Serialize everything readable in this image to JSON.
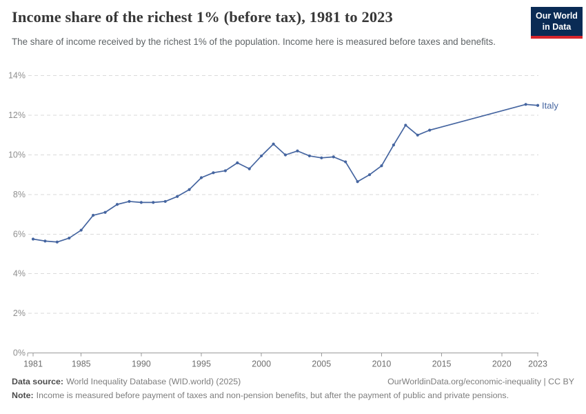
{
  "header": {
    "title": "Income share of the richest 1% (before tax), 1981 to 2023",
    "subtitle": "The share of income received by the richest 1% of the population. Income here is measured before taxes and benefits.",
    "logo": {
      "line1": "Our World",
      "line2": "in Data",
      "bg_color": "#0a2b55",
      "stripe_color": "#d7252c"
    }
  },
  "chart_data": {
    "type": "line",
    "title": "Income share of the richest 1% (before tax), 1981 to 2023",
    "xlabel": "",
    "ylabel": "",
    "xlim": [
      1981,
      2023
    ],
    "ylim": [
      0,
      14
    ],
    "grid": "horizontal-dashed",
    "legend_position": "end-of-line",
    "x_ticks": [
      1981,
      1985,
      1990,
      1995,
      2000,
      2005,
      2010,
      2015,
      2020,
      2023
    ],
    "y_ticks": [
      0,
      2,
      4,
      6,
      8,
      10,
      12,
      14
    ],
    "y_tick_suffix": "%",
    "series": [
      {
        "name": "Italy",
        "color": "#4565a0",
        "points": [
          [
            1981,
            5.75
          ],
          [
            1982,
            5.65
          ],
          [
            1983,
            5.6
          ],
          [
            1984,
            5.8
          ],
          [
            1985,
            6.2
          ],
          [
            1986,
            6.95
          ],
          [
            1987,
            7.1
          ],
          [
            1988,
            7.5
          ],
          [
            1989,
            7.65
          ],
          [
            1990,
            7.6
          ],
          [
            1991,
            7.6
          ],
          [
            1992,
            7.65
          ],
          [
            1993,
            7.9
          ],
          [
            1994,
            8.25
          ],
          [
            1995,
            8.85
          ],
          [
            1996,
            9.1
          ],
          [
            1997,
            9.2
          ],
          [
            1998,
            9.6
          ],
          [
            1999,
            9.3
          ],
          [
            2000,
            9.95
          ],
          [
            2001,
            10.55
          ],
          [
            2002,
            10.0
          ],
          [
            2003,
            10.2
          ],
          [
            2004,
            9.95
          ],
          [
            2005,
            9.85
          ],
          [
            2006,
            9.9
          ],
          [
            2007,
            9.65
          ],
          [
            2008,
            8.65
          ],
          [
            2009,
            9.0
          ],
          [
            2010,
            9.45
          ],
          [
            2011,
            10.5
          ],
          [
            2012,
            11.5
          ],
          [
            2013,
            11.0
          ],
          [
            2014,
            11.25
          ],
          [
            2022,
            12.55
          ],
          [
            2023,
            12.5
          ]
        ]
      }
    ]
  },
  "footer": {
    "datasource_label": "Data source:",
    "datasource_text": "World Inequality Database (WID.world) (2025)",
    "attribution": "OurWorldinData.org/economic-inequality | CC BY",
    "note_label": "Note:",
    "note_text": "Income is measured before payment of taxes and non-pension benefits, but after the payment of public and private pensions."
  }
}
